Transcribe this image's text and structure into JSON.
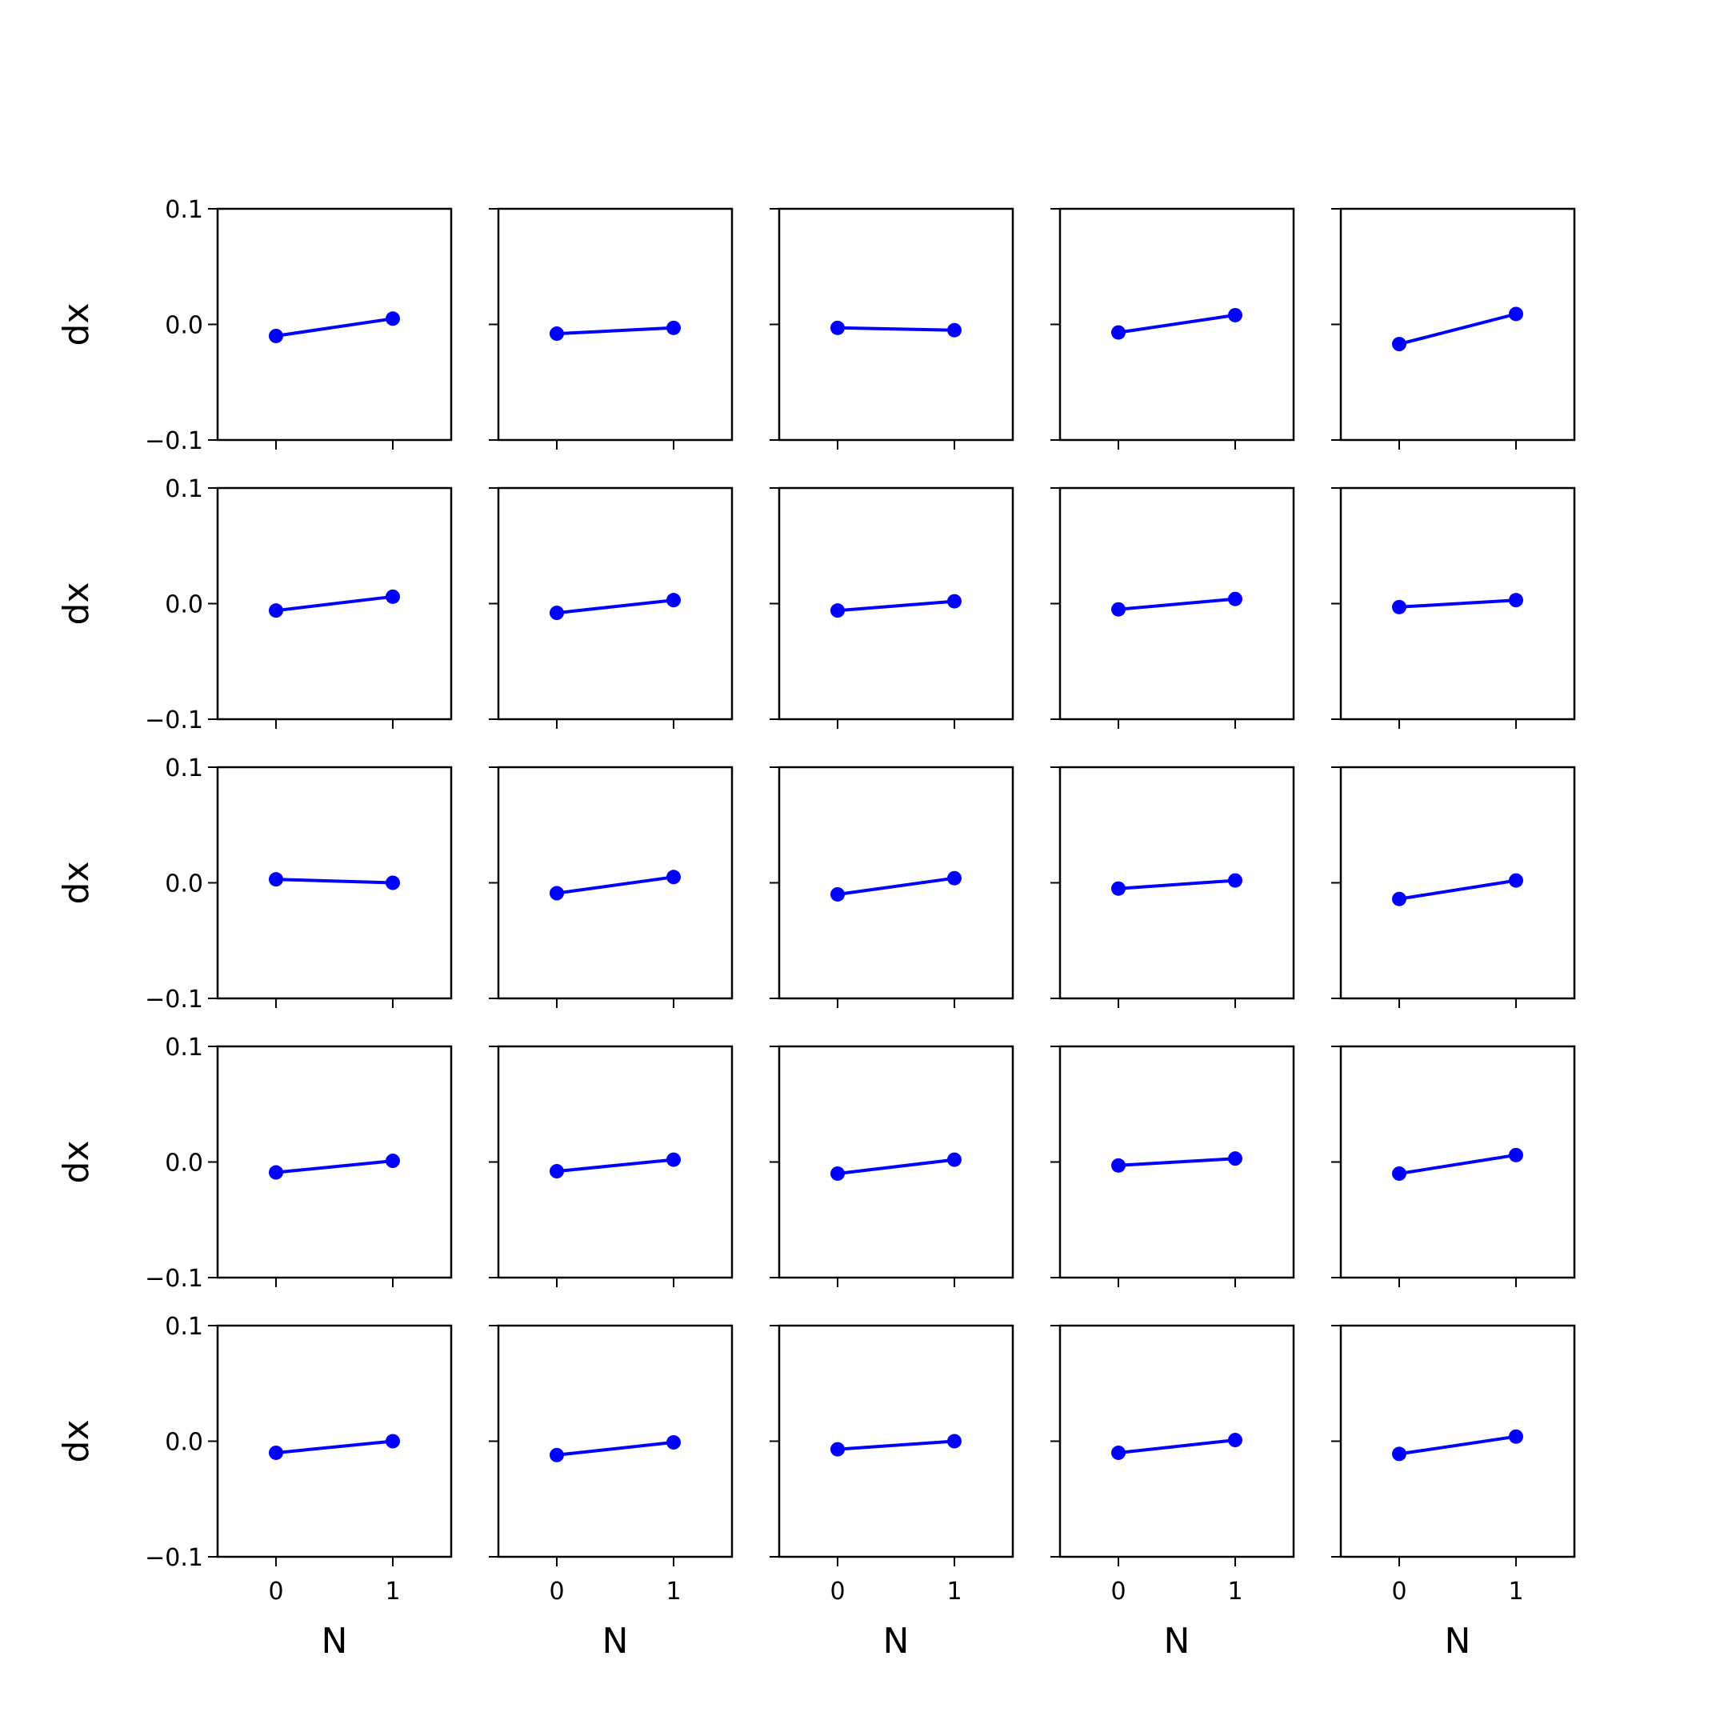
{
  "chart_data": {
    "type": "line",
    "layout": {
      "rows": 5,
      "cols": 5,
      "sharex": true,
      "sharey": true
    },
    "xlabel": "N",
    "ylabel": "dx",
    "xticks": [
      "0",
      "1"
    ],
    "yticks": [
      "0.1",
      "0.0",
      "−0.1"
    ],
    "ytick_values": [
      0.1,
      0.0,
      -0.1
    ],
    "xlim": [
      -0.5,
      1.5
    ],
    "ylim": [
      -0.1,
      0.1
    ],
    "line_color": "#0000ff",
    "marker": "circle",
    "grid": false,
    "panels": [
      {
        "x": [
          0,
          1
        ],
        "y": [
          -0.01,
          0.005
        ]
      },
      {
        "x": [
          0,
          1
        ],
        "y": [
          -0.008,
          -0.003
        ]
      },
      {
        "x": [
          0,
          1
        ],
        "y": [
          -0.003,
          -0.005
        ]
      },
      {
        "x": [
          0,
          1
        ],
        "y": [
          -0.007,
          0.008
        ]
      },
      {
        "x": [
          0,
          1
        ],
        "y": [
          -0.017,
          0.009
        ]
      },
      {
        "x": [
          0,
          1
        ],
        "y": [
          -0.006,
          0.006
        ]
      },
      {
        "x": [
          0,
          1
        ],
        "y": [
          -0.008,
          0.003
        ]
      },
      {
        "x": [
          0,
          1
        ],
        "y": [
          -0.006,
          0.002
        ]
      },
      {
        "x": [
          0,
          1
        ],
        "y": [
          -0.005,
          0.004
        ]
      },
      {
        "x": [
          0,
          1
        ],
        "y": [
          -0.003,
          0.003
        ]
      },
      {
        "x": [
          0,
          1
        ],
        "y": [
          0.003,
          0.0
        ]
      },
      {
        "x": [
          0,
          1
        ],
        "y": [
          -0.009,
          0.005
        ]
      },
      {
        "x": [
          0,
          1
        ],
        "y": [
          -0.01,
          0.004
        ]
      },
      {
        "x": [
          0,
          1
        ],
        "y": [
          -0.005,
          0.002
        ]
      },
      {
        "x": [
          0,
          1
        ],
        "y": [
          -0.014,
          0.002
        ]
      },
      {
        "x": [
          0,
          1
        ],
        "y": [
          -0.009,
          0.001
        ]
      },
      {
        "x": [
          0,
          1
        ],
        "y": [
          -0.008,
          0.002
        ]
      },
      {
        "x": [
          0,
          1
        ],
        "y": [
          -0.01,
          0.002
        ]
      },
      {
        "x": [
          0,
          1
        ],
        "y": [
          -0.003,
          0.003
        ]
      },
      {
        "x": [
          0,
          1
        ],
        "y": [
          -0.01,
          0.006
        ]
      },
      {
        "x": [
          0,
          1
        ],
        "y": [
          -0.01,
          0.0
        ]
      },
      {
        "x": [
          0,
          1
        ],
        "y": [
          -0.012,
          -0.001
        ]
      },
      {
        "x": [
          0,
          1
        ],
        "y": [
          -0.007,
          0.0
        ]
      },
      {
        "x": [
          0,
          1
        ],
        "y": [
          -0.01,
          0.001
        ]
      },
      {
        "x": [
          0,
          1
        ],
        "y": [
          -0.011,
          0.004
        ]
      }
    ]
  }
}
